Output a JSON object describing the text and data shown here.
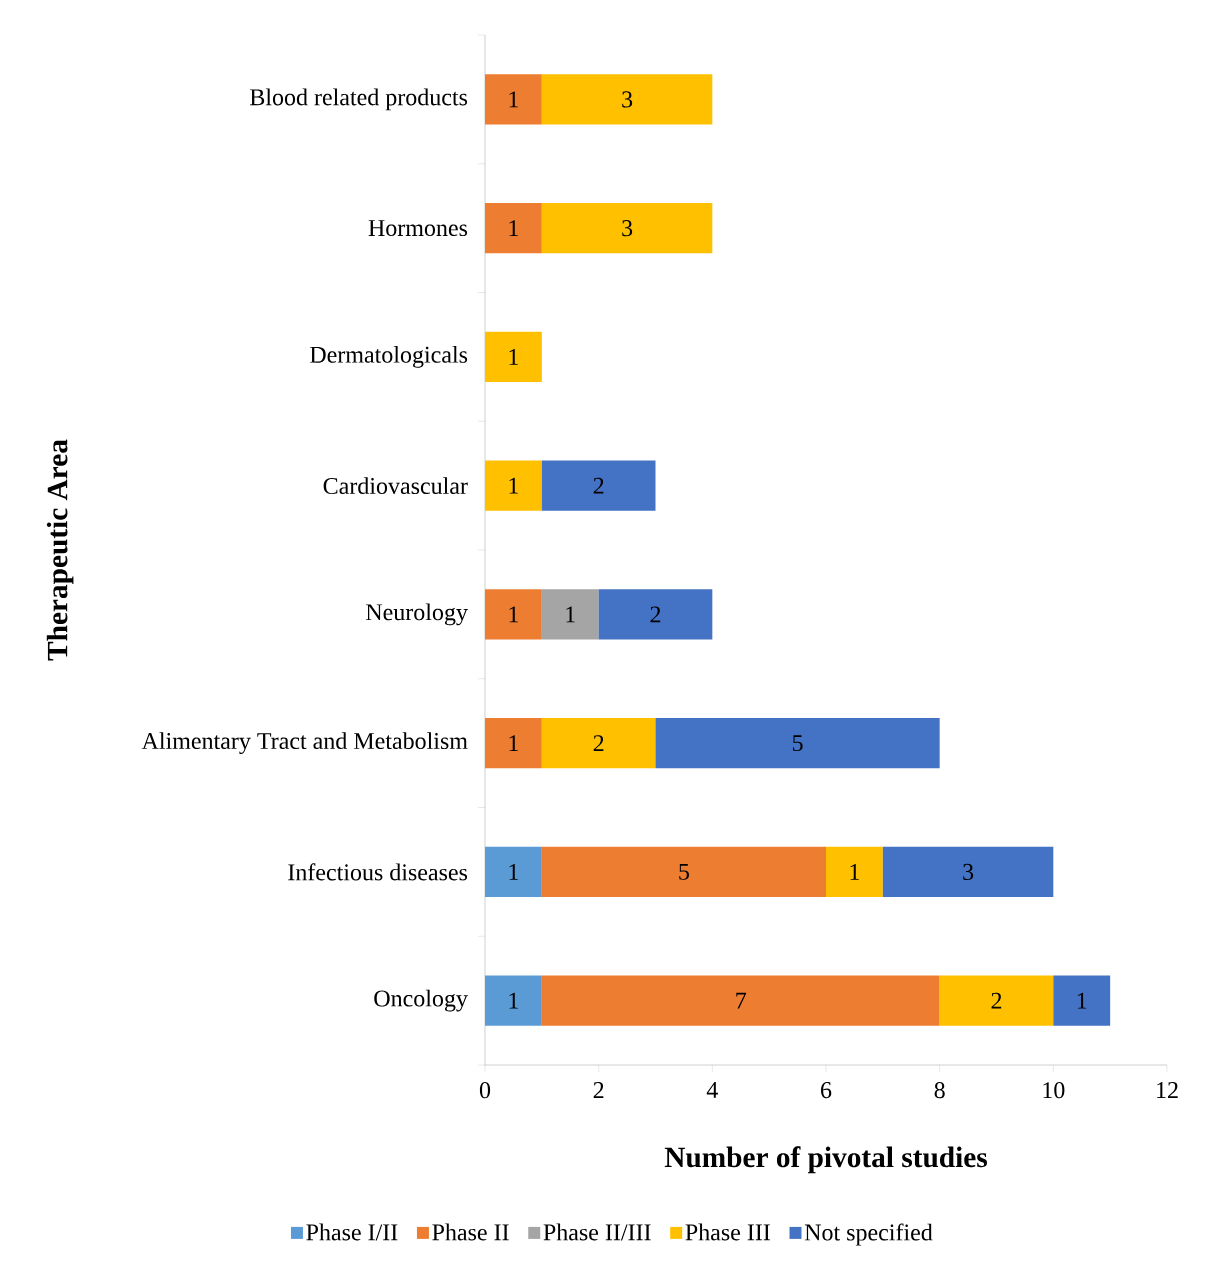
{
  "chart_data": {
    "type": "bar",
    "orientation": "horizontal",
    "stacked": true,
    "xlabel": "Number of pivotal studies",
    "ylabel": "Therapeutic Area",
    "categories": [
      "Blood related products",
      "Hormones",
      "Dermatologicals",
      "Cardiovascular",
      "Neurology",
      "Alimentary Tract and Metabolism",
      "Infectious diseases",
      "Oncology"
    ],
    "series": [
      {
        "name": "Phase I/II",
        "color": "#5b9bd5",
        "values": [
          null,
          null,
          null,
          null,
          null,
          null,
          1,
          1
        ]
      },
      {
        "name": "Phase II",
        "color": "#ed7d31",
        "values": [
          1,
          1,
          null,
          null,
          1,
          1,
          5,
          7
        ]
      },
      {
        "name": "Phase II/III",
        "color": "#a5a5a5",
        "values": [
          null,
          null,
          null,
          null,
          1,
          null,
          null,
          null
        ]
      },
      {
        "name": "Phase III",
        "color": "#ffc000",
        "values": [
          3,
          3,
          1,
          1,
          null,
          2,
          1,
          2
        ]
      },
      {
        "name": "Not specified",
        "color": "#4472c4",
        "values": [
          null,
          null,
          null,
          2,
          2,
          5,
          3,
          1
        ]
      }
    ],
    "xlim": [
      0,
      12
    ],
    "xticks": [
      0,
      2,
      4,
      6,
      8,
      10,
      12
    ],
    "data_labels": true,
    "grid": false,
    "legend": "bottom"
  }
}
